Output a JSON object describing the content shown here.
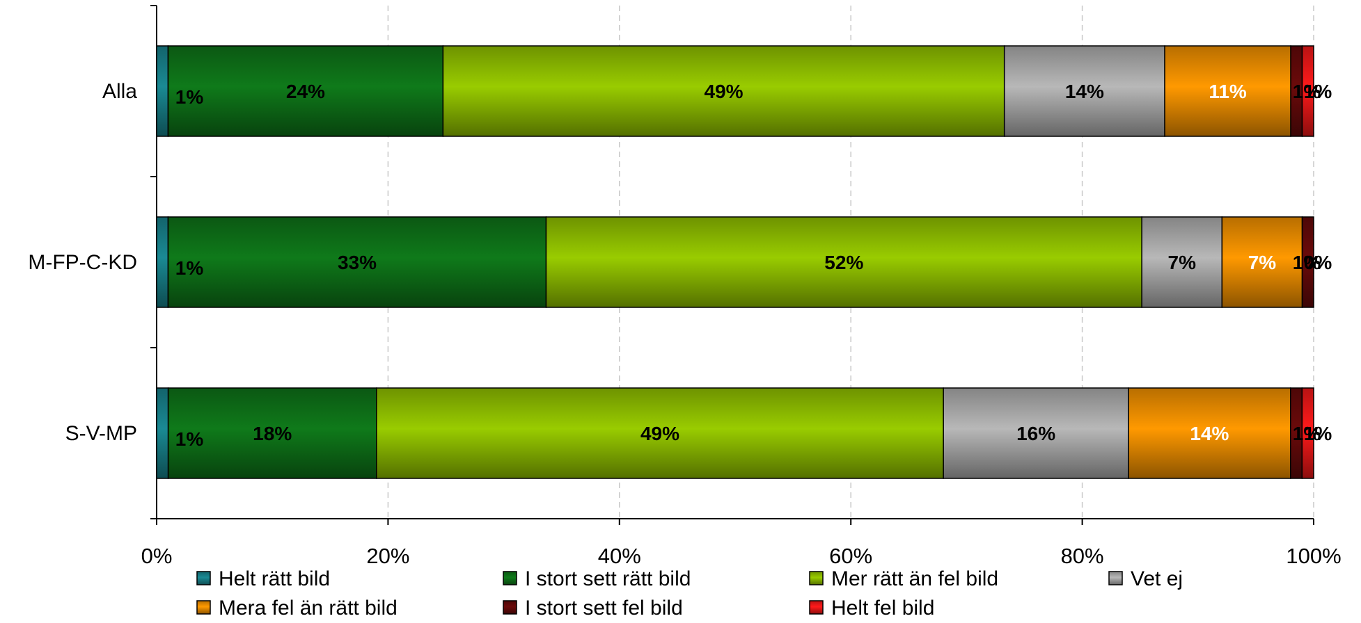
{
  "chart_data": {
    "type": "bar",
    "orientation": "horizontal",
    "stacked": true,
    "normalized": true,
    "categories": [
      "Alla",
      "M-FP-C-KD",
      "S-V-MP"
    ],
    "series": [
      {
        "name": "Helt rätt bild",
        "color": "#1a8a94",
        "label_color": "#000000",
        "values": [
          1,
          1,
          1
        ],
        "labels": [
          "1%",
          "1%",
          "1%"
        ]
      },
      {
        "name": "I stort sett rätt bild",
        "color": "#0f7a1a",
        "label_color": "#000000",
        "values": [
          24,
          33,
          18
        ],
        "labels": [
          "24%",
          "33%",
          "18%"
        ]
      },
      {
        "name": "Mer rätt än fel bild",
        "color": "#99cc00",
        "label_color": "#000000",
        "values": [
          49,
          52,
          49
        ],
        "labels": [
          "49%",
          "52%",
          "49%"
        ]
      },
      {
        "name": "Vet ej",
        "color": "#b8b8b8",
        "label_color": "#000000",
        "values": [
          14,
          7,
          16
        ],
        "labels": [
          "14%",
          "7%",
          "16%"
        ]
      },
      {
        "name": "Mera fel än rätt bild",
        "color": "#ff9900",
        "label_color": "#ffffff",
        "values": [
          11,
          7,
          14
        ],
        "labels": [
          "11%",
          "7%",
          "14%"
        ]
      },
      {
        "name": "I stort sett fel bild",
        "color": "#6b0a0a",
        "label_color": "#000000",
        "values": [
          1,
          1,
          1
        ],
        "labels": [
          "1%",
          "1%",
          "1%"
        ]
      },
      {
        "name": "Helt fel bild",
        "color": "#ff1a1a",
        "label_color": "#000000",
        "values": [
          1,
          0,
          1
        ],
        "labels": [
          "1%",
          "0%",
          "1%"
        ]
      }
    ],
    "xlim": [
      0,
      100
    ],
    "x_ticks": [
      "0%",
      "20%",
      "40%",
      "60%",
      "80%",
      "100%"
    ],
    "grid": "vertical dashed",
    "legend_position": "bottom"
  }
}
